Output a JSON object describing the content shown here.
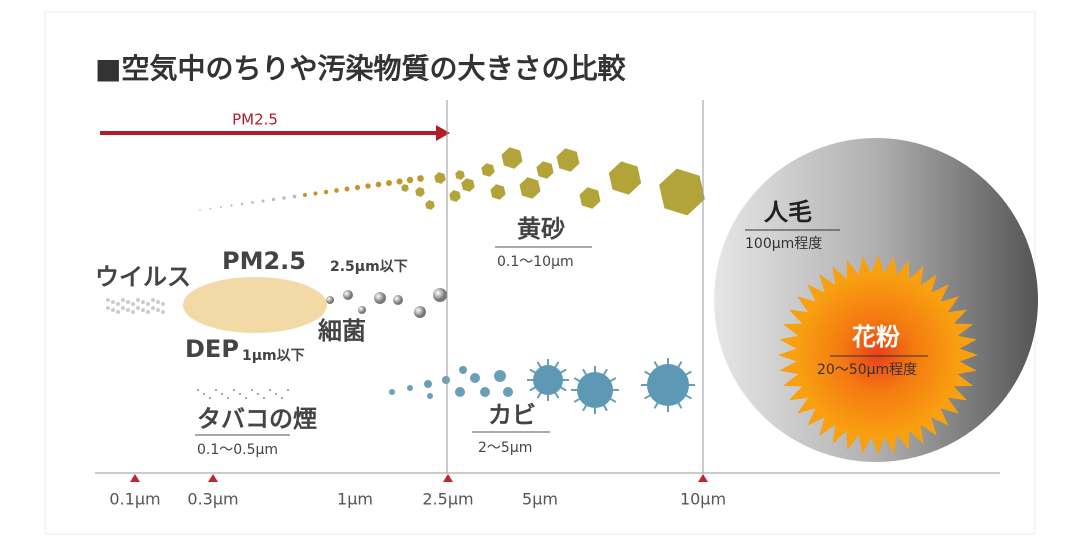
{
  "title": "■空気中のちりや汚染物質の大きさの比較",
  "pm25_arrow": "PM2.5",
  "items": {
    "kosa": {
      "name": "黄砂",
      "size": "0.1〜10μm"
    },
    "virus": {
      "name": "ウイルス"
    },
    "pm25": {
      "name": "PM2.5",
      "size": "2.5μm以下"
    },
    "bacteria": {
      "name": "細菌"
    },
    "dep": {
      "name": "DEP",
      "size": "1μm以下"
    },
    "tobacco": {
      "name": "タバコの煙",
      "size": "0.1〜0.5μm"
    },
    "mold": {
      "name": "カビ",
      "size": "2〜5μm"
    },
    "hair": {
      "name": "人毛",
      "size": "100μm程度"
    },
    "pollen": {
      "name": "花粉",
      "size": "20〜50μm程度"
    }
  },
  "axis": [
    "0.1μm",
    "0.3μm",
    "1μm",
    "2.5μm",
    "5μm",
    "10μm"
  ]
}
